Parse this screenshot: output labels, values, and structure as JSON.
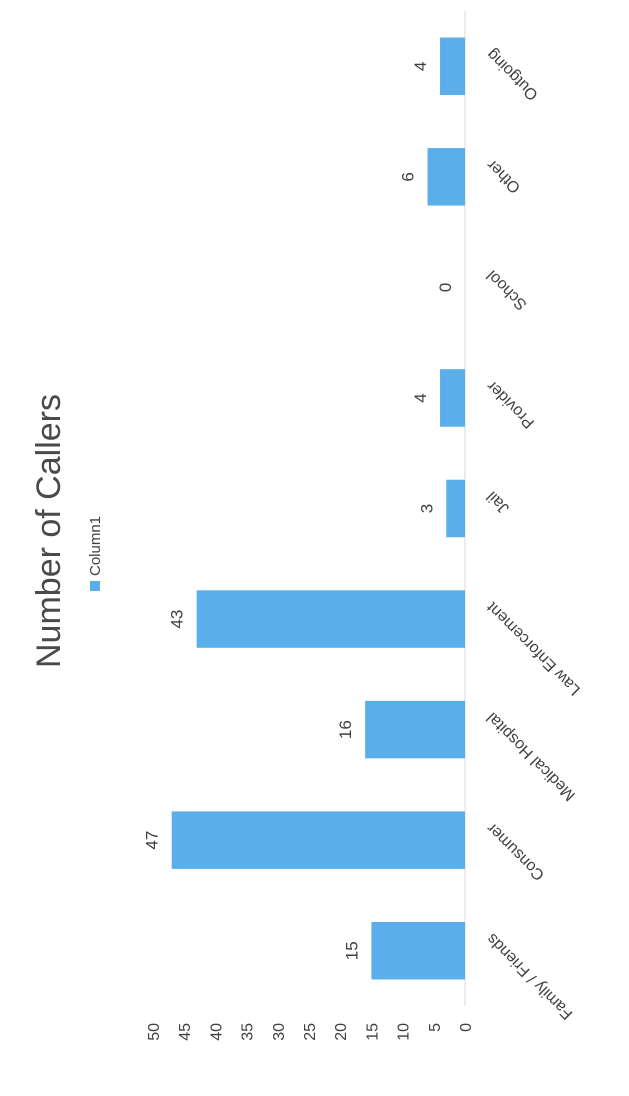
{
  "colors": {
    "bar": "#5aaeea",
    "text": "#404040",
    "title": "#4a4a4a"
  },
  "chart_data": {
    "type": "bar",
    "title": "Number of Callers",
    "xlabel": "",
    "ylabel": "",
    "ylim": [
      0,
      50
    ],
    "yticks": [
      0,
      5,
      10,
      15,
      20,
      25,
      30,
      35,
      40,
      45,
      50
    ],
    "grid": false,
    "legend": {
      "position": "top",
      "entries": [
        "Column1"
      ]
    },
    "categories": [
      "Family / Friends",
      "Consumer",
      "Medical Hospital",
      "Law Enforcement",
      "Jail",
      "Provider",
      "School",
      "Other",
      "Outgoing"
    ],
    "series": [
      {
        "name": "Column1",
        "values": [
          15,
          47,
          16,
          43,
          3,
          4,
          0,
          6,
          4
        ]
      }
    ]
  }
}
